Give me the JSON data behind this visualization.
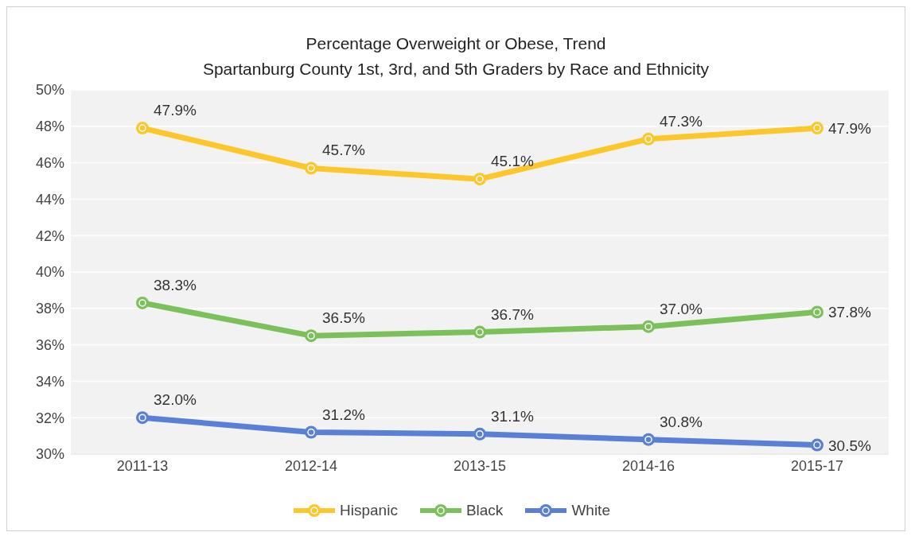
{
  "chart_data": {
    "type": "line",
    "title": "Percentage Overweight or Obese, Trend",
    "subtitle": "Spartanburg County 1st, 3rd, and 5th Graders by Race and Ethnicity",
    "categories": [
      "2011-13",
      "2012-14",
      "2013-15",
      "2014-16",
      "2015-17"
    ],
    "series": [
      {
        "name": "Hispanic",
        "color": "#fcc72a",
        "values": [
          47.9,
          45.7,
          45.1,
          47.3,
          47.9
        ],
        "value_labels": [
          "47.9%",
          "45.7%",
          "45.1%",
          "47.3%",
          "47.9%"
        ]
      },
      {
        "name": "Black",
        "color": "#7cc05c",
        "values": [
          38.3,
          36.5,
          36.7,
          37.0,
          37.8
        ],
        "value_labels": [
          "38.3%",
          "36.5%",
          "36.7%",
          "37.0%",
          "37.8%"
        ]
      },
      {
        "name": "White",
        "color": "#5a80d6",
        "values": [
          32.0,
          31.2,
          31.1,
          30.8,
          30.5
        ],
        "value_labels": [
          "32.0%",
          "31.2%",
          "31.1%",
          "30.8%",
          "30.5%"
        ]
      }
    ],
    "ylim": [
      30,
      50
    ],
    "yticks": [
      {
        "value": 30,
        "label": "30%"
      },
      {
        "value": 32,
        "label": "32%"
      },
      {
        "value": 34,
        "label": "34%"
      },
      {
        "value": 36,
        "label": "36%"
      },
      {
        "value": 38,
        "label": "38%"
      },
      {
        "value": 40,
        "label": "40%"
      },
      {
        "value": 42,
        "label": "42%"
      },
      {
        "value": 44,
        "label": "44%"
      },
      {
        "value": 46,
        "label": "46%"
      },
      {
        "value": 48,
        "label": "48%"
      },
      {
        "value": 50,
        "label": "50%"
      }
    ],
    "grid": "y",
    "legend": "bottom",
    "marker": "circle",
    "line_style": "solid"
  }
}
